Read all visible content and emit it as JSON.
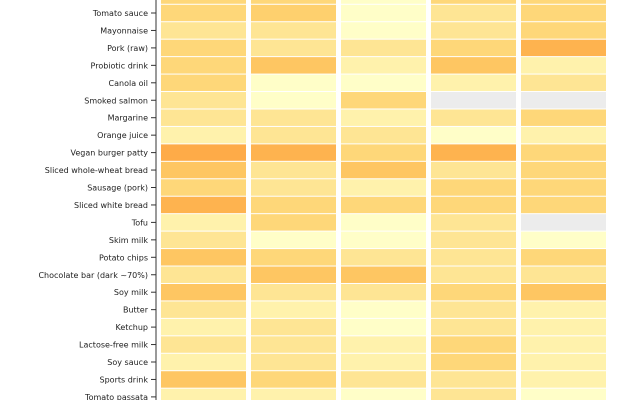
{
  "chart_data": {
    "type": "heatmap",
    "title": "",
    "xlabel": "",
    "ylabel": "",
    "columns": [
      "",
      "",
      "",
      "",
      ""
    ],
    "rows": [
      "",
      "Tomato sauce",
      "Mayonnaise",
      "Pork (raw)",
      "Probiotic drink",
      "Canola oil",
      "Smoked salmon",
      "Margarine",
      "Orange juice",
      "Vegan burger patty",
      "Sliced whole-wheat bread",
      "Sausage (pork)",
      "Sliced white bread",
      "Tofu",
      "Skim milk",
      "Potato chips",
      "Chocolate bar (dark ~70%)",
      "Soy milk",
      "Butter",
      "Ketchup",
      "Lactose-free milk",
      "Soy sauce",
      "Sports drink",
      "Tomato passata"
    ],
    "value_scale": "relative intensity 1 (pale yellow) to 6.5 (orange); null = missing (grey)",
    "values": [
      [
        4,
        4,
        1,
        4,
        4
      ],
      [
        4,
        4.5,
        1,
        3,
        4
      ],
      [
        3,
        3,
        1,
        3,
        4
      ],
      [
        4,
        3,
        3,
        4,
        6
      ],
      [
        4,
        5,
        2,
        5,
        2
      ],
      [
        4,
        1,
        1,
        2,
        3
      ],
      [
        3,
        1,
        4,
        null,
        null
      ],
      [
        3,
        3,
        2,
        3,
        4
      ],
      [
        2,
        3,
        3,
        1,
        2
      ],
      [
        6.5,
        6,
        4,
        6,
        4
      ],
      [
        5,
        3,
        5,
        3,
        4
      ],
      [
        4,
        3,
        2,
        4,
        4
      ],
      [
        6,
        4,
        4,
        4,
        4
      ],
      [
        2,
        4,
        1,
        3,
        null
      ],
      [
        3,
        1,
        1,
        3,
        1
      ],
      [
        5,
        4,
        3,
        3,
        4
      ],
      [
        3,
        5,
        5,
        3,
        3
      ],
      [
        5,
        3,
        3,
        4,
        5
      ],
      [
        3,
        2,
        1,
        3,
        2
      ],
      [
        2,
        3,
        1,
        3,
        2
      ],
      [
        3,
        3,
        2,
        4,
        2
      ],
      [
        2,
        3,
        2,
        4,
        2
      ],
      [
        5,
        4,
        3,
        3,
        2
      ],
      [
        2,
        2,
        1,
        3,
        1
      ]
    ],
    "colors": {
      "low": "#fffec8",
      "high": "#feab48",
      "missing": "#ececec"
    }
  }
}
